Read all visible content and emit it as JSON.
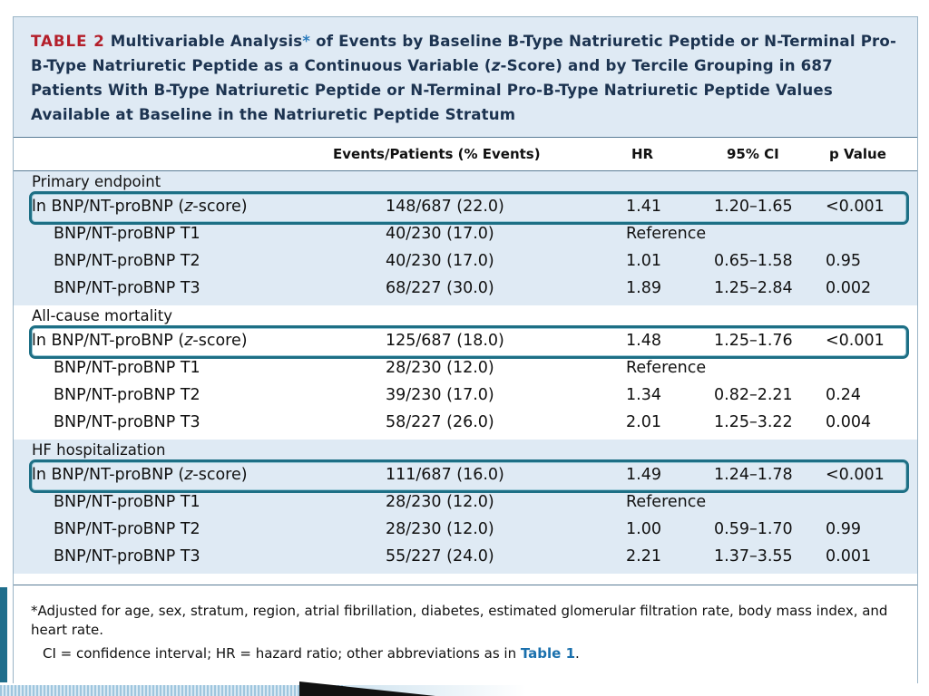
{
  "table": {
    "label": "TABLE 2",
    "title_a": "Multivariable Analysis",
    "title_asterisk": "*",
    "title_b": " of Events by Baseline B-Type Natriuretic Peptide or N-Terminal Pro-B-Type Natriuretic Peptide as a Continuous Variable (z-Score) and by Tercile Grouping in 687 Patients With B-Type Natriuretic Peptide or N-Terminal Pro-B-Type Natriuretic Peptide Values Available at Baseline in the Natriuretic Peptide Stratum",
    "headers": [
      "Events/Patients (% Events)",
      "HR",
      "95% CI",
      "p Value"
    ],
    "sections": [
      {
        "title": "Primary endpoint",
        "rows": [
          {
            "label": "ln BNP/NT-proBNP (z-score)",
            "events": "148/687 (22.0)",
            "hr": "1.41",
            "ci": "1.20–1.65",
            "p": "<0.001",
            "highlight": true
          },
          {
            "label": "BNP/NT-proBNP T1",
            "events": "40/230 (17.0)",
            "hr": "Reference",
            "ci": "",
            "p": ""
          },
          {
            "label": "BNP/NT-proBNP T2",
            "events": "40/230 (17.0)",
            "hr": "1.01",
            "ci": "0.65–1.58",
            "p": "0.95"
          },
          {
            "label": "BNP/NT-proBNP T3",
            "events": "68/227 (30.0)",
            "hr": "1.89",
            "ci": "1.25–2.84",
            "p": "0.002"
          }
        ]
      },
      {
        "title": "All-cause mortality",
        "rows": [
          {
            "label": "ln BNP/NT-proBNP (z-score)",
            "events": "125/687 (18.0)",
            "hr": "1.48",
            "ci": "1.25–1.76",
            "p": "<0.001",
            "highlight": true
          },
          {
            "label": "BNP/NT-proBNP T1",
            "events": "28/230 (12.0)",
            "hr": "Reference",
            "ci": "",
            "p": ""
          },
          {
            "label": "BNP/NT-proBNP T2",
            "events": "39/230 (17.0)",
            "hr": "1.34",
            "ci": "0.82–2.21",
            "p": "0.24"
          },
          {
            "label": "BNP/NT-proBNP T3",
            "events": "58/227 (26.0)",
            "hr": "2.01",
            "ci": "1.25–3.22",
            "p": "0.004"
          }
        ]
      },
      {
        "title": "HF hospitalization",
        "rows": [
          {
            "label": "ln BNP/NT-proBNP (z-score)",
            "events": "111/687 (16.0)",
            "hr": "1.49",
            "ci": "1.24–1.78",
            "p": "<0.001",
            "highlight": true
          },
          {
            "label": "BNP/NT-proBNP T1",
            "events": "28/230 (12.0)",
            "hr": "Reference",
            "ci": "",
            "p": ""
          },
          {
            "label": "BNP/NT-proBNP T2",
            "events": "28/230 (12.0)",
            "hr": "1.00",
            "ci": "0.59–1.70",
            "p": "0.99"
          },
          {
            "label": "BNP/NT-proBNP T3",
            "events": "55/227 (24.0)",
            "hr": "2.21",
            "ci": "1.37–3.55",
            "p": "0.001"
          }
        ]
      }
    ],
    "footnote": "*Adjusted for age, sex, stratum, region, atrial fibrillation, diabetes, estimated glomerular filtration rate, body mass index, and heart rate.",
    "abbrev_text": "CI = confidence interval; HR = hazard ratio; other abbreviations as in ",
    "abbrev_link": "Table 1",
    "abbrev_end": "."
  },
  "colors": {
    "label_red": "#b41f2a",
    "title_navy": "#1c3350",
    "shade_blue": "#dfeaf4",
    "highlight_teal": "#1d6f85",
    "link_blue": "#1a70ad"
  }
}
